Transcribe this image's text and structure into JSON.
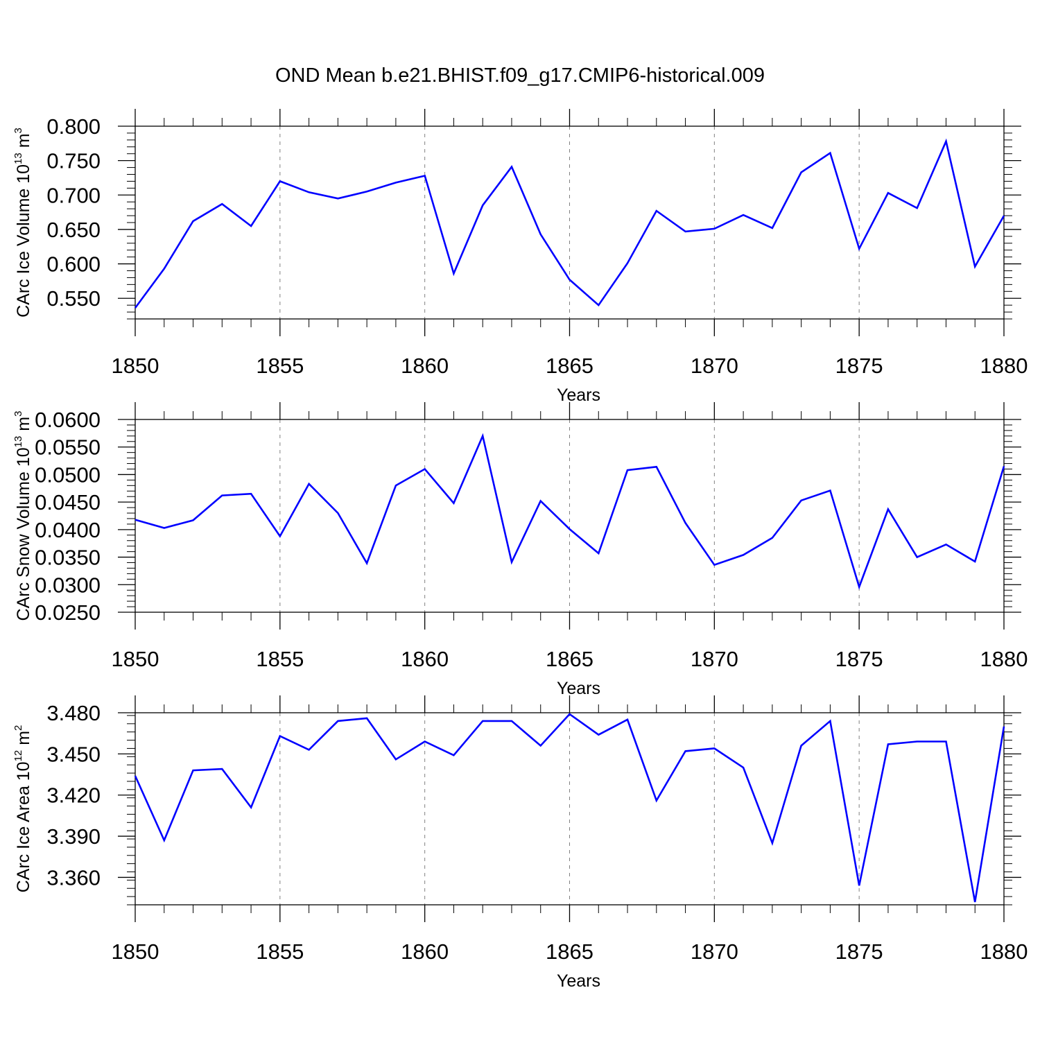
{
  "figure_title": "OND Mean b.e21.BHIST.f09_g17.CMIP6-historical.009",
  "colors": {
    "line": "#0000ff",
    "axis": "#000000",
    "grid": "#808080"
  },
  "chart_data": [
    {
      "type": "line",
      "series_name": "CArc Ice Volume",
      "ylabel": {
        "base": "CArc Ice Volume 10",
        "sup1": "13",
        "mid": " m",
        "sup2": "3"
      },
      "xlabel": "Years",
      "xlim": [
        1850,
        1880
      ],
      "ylim": [
        0.52,
        0.8
      ],
      "x_ticks": [
        1850,
        1855,
        1860,
        1865,
        1870,
        1875,
        1880
      ],
      "x_tick_labels": [
        "1850",
        "1855",
        "1860",
        "1865",
        "1870",
        "1875",
        "1880"
      ],
      "y_ticks": [
        0.55,
        0.6,
        0.65,
        0.7,
        0.75,
        0.8
      ],
      "y_tick_labels": [
        "0.550",
        "0.600",
        "0.650",
        "0.700",
        "0.750",
        "0.800"
      ],
      "y_minor_step": 0.01,
      "x": [
        1850,
        1851,
        1852,
        1853,
        1854,
        1855,
        1856,
        1857,
        1858,
        1859,
        1860,
        1861,
        1862,
        1863,
        1864,
        1865,
        1866,
        1867,
        1868,
        1869,
        1870,
        1871,
        1872,
        1873,
        1874,
        1875,
        1876,
        1877,
        1878,
        1879,
        1880
      ],
      "values": [
        0.536,
        0.593,
        0.662,
        0.687,
        0.655,
        0.72,
        0.704,
        0.695,
        0.705,
        0.718,
        0.728,
        0.586,
        0.685,
        0.741,
        0.643,
        0.577,
        0.54,
        0.601,
        0.677,
        0.647,
        0.651,
        0.671,
        0.652,
        0.733,
        0.761,
        0.622,
        0.703,
        0.681,
        0.778,
        0.596,
        0.67
      ],
      "grid": "vertical dashed"
    },
    {
      "type": "line",
      "series_name": "CArc Snow Volume",
      "ylabel": {
        "base": "CArc Snow Volume 10",
        "sup1": "13",
        "mid": " m",
        "sup2": "3"
      },
      "xlabel": "Years",
      "xlim": [
        1850,
        1880
      ],
      "ylim": [
        0.025,
        0.06
      ],
      "x_ticks": [
        1850,
        1855,
        1860,
        1865,
        1870,
        1875,
        1880
      ],
      "x_tick_labels": [
        "1850",
        "1855",
        "1860",
        "1865",
        "1870",
        "1875",
        "1880"
      ],
      "y_ticks": [
        0.025,
        0.03,
        0.035,
        0.04,
        0.045,
        0.05,
        0.055,
        0.06
      ],
      "y_tick_labels": [
        "0.0250",
        "0.0300",
        "0.0350",
        "0.0400",
        "0.0450",
        "0.0500",
        "0.0550",
        "0.0600"
      ],
      "y_minor_step": 0.001,
      "x": [
        1850,
        1851,
        1852,
        1853,
        1854,
        1855,
        1856,
        1857,
        1858,
        1859,
        1860,
        1861,
        1862,
        1863,
        1864,
        1865,
        1866,
        1867,
        1868,
        1869,
        1870,
        1871,
        1872,
        1873,
        1874,
        1875,
        1876,
        1877,
        1878,
        1879,
        1880
      ],
      "values": [
        0.0418,
        0.0403,
        0.0417,
        0.0462,
        0.0465,
        0.0388,
        0.0483,
        0.043,
        0.0339,
        0.048,
        0.051,
        0.0448,
        0.057,
        0.0341,
        0.0452,
        0.0401,
        0.0357,
        0.0508,
        0.0514,
        0.0412,
        0.0336,
        0.0354,
        0.0385,
        0.0453,
        0.0471,
        0.0296,
        0.0437,
        0.035,
        0.0373,
        0.0342,
        0.0515
      ],
      "grid": "vertical dashed"
    },
    {
      "type": "line",
      "series_name": "CArc Ice Area",
      "ylabel": {
        "base": "CArc Ice Area 10",
        "sup1": "12",
        "mid": " m",
        "sup2": "2"
      },
      "xlabel": "Years",
      "xlim": [
        1850,
        1880
      ],
      "ylim": [
        3.34,
        3.48
      ],
      "x_ticks": [
        1850,
        1855,
        1860,
        1865,
        1870,
        1875,
        1880
      ],
      "x_tick_labels": [
        "1850",
        "1855",
        "1860",
        "1865",
        "1870",
        "1875",
        "1880"
      ],
      "y_ticks": [
        3.36,
        3.39,
        3.42,
        3.45,
        3.48
      ],
      "y_tick_labels": [
        "3.360",
        "3.390",
        "3.420",
        "3.450",
        "3.480"
      ],
      "y_minor_step": 0.006,
      "x": [
        1850,
        1851,
        1852,
        1853,
        1854,
        1855,
        1856,
        1857,
        1858,
        1859,
        1860,
        1861,
        1862,
        1863,
        1864,
        1865,
        1866,
        1867,
        1868,
        1869,
        1870,
        1871,
        1872,
        1873,
        1874,
        1875,
        1876,
        1877,
        1878,
        1879,
        1880
      ],
      "values": [
        3.434,
        3.387,
        3.438,
        3.439,
        3.411,
        3.463,
        3.453,
        3.474,
        3.476,
        3.446,
        3.459,
        3.449,
        3.474,
        3.474,
        3.456,
        3.479,
        3.464,
        3.475,
        3.416,
        3.452,
        3.454,
        3.44,
        3.385,
        3.456,
        3.474,
        3.354,
        3.457,
        3.459,
        3.459,
        3.342,
        3.47
      ],
      "grid": "vertical dashed"
    }
  ]
}
